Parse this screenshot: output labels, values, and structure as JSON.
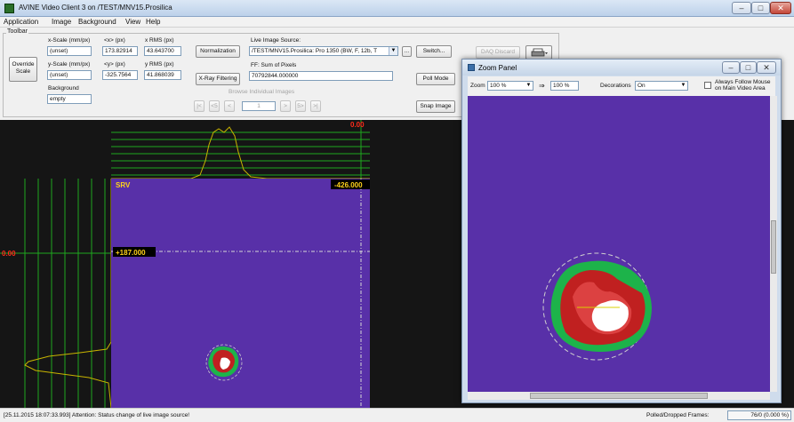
{
  "window": {
    "title": "AVINE Video Client 3 on /TEST/MNV15.Prosilica"
  },
  "menu": [
    "Application",
    "Image",
    "Background",
    "View",
    "Help"
  ],
  "toolbar": {
    "caption": "Toolbar",
    "override_scale": [
      "Override",
      "Scale"
    ],
    "x_scale": {
      "label": "x-Scale (mm/px)",
      "value": "(unset)"
    },
    "y_scale": {
      "label": "y-Scale (mm/px)",
      "value": "(unset)"
    },
    "cx": {
      "label": "<x> (px)",
      "value": "173.82914"
    },
    "cy": {
      "label": "<y> (px)",
      "value": "-325.7564"
    },
    "x_rms": {
      "label": "x RMS (px)",
      "value": "43.643700"
    },
    "y_rms": {
      "label": "y RMS (px)",
      "value": "41.868039"
    },
    "background": {
      "label": "Background",
      "value": "empty"
    },
    "normalization_button": "Normalization",
    "xray_filtering_button": "X-Ray Filtering",
    "live_source": {
      "label": "Live Image Source:",
      "value": "/TEST/MNV15.Prosilica: Pro 1350 (BW, F, 12b, T"
    },
    "browse_button": "...",
    "switch_button": "Switch...",
    "ff_sum": {
      "label": "FF: Sum of Pixels",
      "value": "70792844.000000"
    },
    "browse_images_label": "Browse Individual Images",
    "nav_buttons": [
      "|<",
      "<5",
      "<",
      ">",
      "5>",
      ">|"
    ],
    "image_index": "1",
    "daq_discard_button": "DAQ Discard",
    "poll_mode_button": "Poll Mode",
    "snap_image_button": "Snap Image"
  },
  "video": {
    "top_readout": "0.00",
    "side_readout": "0.00",
    "srv_label": "SRV",
    "x_marker": "-426.000",
    "y_marker": "+187.000"
  },
  "zoom_panel": {
    "title": "Zoom Panel",
    "zoom_label": "Zoom",
    "zoom_value": "100 %",
    "arrow": "⇒",
    "zoom_result": "100 %",
    "decorations_label": "Decorations",
    "decorations_value": "On",
    "follow_label": "Always Follow Mouse on Main Video Area",
    "follow_checked": false
  },
  "status": {
    "message": "[25.11.2015 18:07:33.993] Attention: Status change of live image source!",
    "frames_label": "Polled/Dropped Frames:",
    "frames_value": "76/0 (0.000 %)"
  },
  "colors": {
    "video_bg": "#5830a8",
    "profile_line": "#c8b400",
    "grid_line": "#1fa81f",
    "readout_red": "#ff2a1a",
    "marker_bg": "#000000",
    "marker_text": "#ffd21a"
  },
  "icons": {
    "app": "app-icon",
    "minimize": "minimize-icon",
    "maximize": "maximize-icon",
    "close": "close-icon",
    "dropdown": "chevron-down-icon",
    "print": "print-icon"
  }
}
